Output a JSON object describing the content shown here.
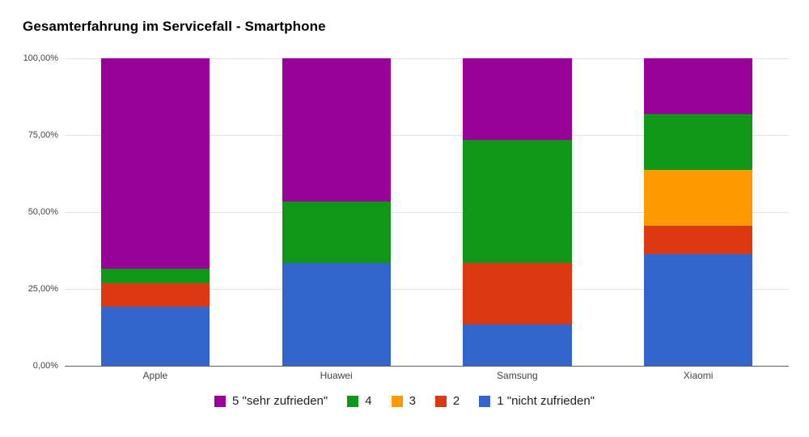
{
  "title": "Gesamterfahrung im Servicefall - Smartphone",
  "chart_data": {
    "type": "bar",
    "variant": "stacked-100-percent",
    "title": "Gesamterfahrung im Servicefall - Smartphone",
    "categories": [
      "Apple",
      "Huawei",
      "Samsung",
      "Xiaomi"
    ],
    "series": [
      {
        "name": "5 \"sehr zufrieden\"",
        "color": "#990099",
        "values": [
          68.5,
          46.7,
          26.7,
          18.2
        ]
      },
      {
        "name": "4",
        "color": "#109618",
        "values": [
          4.6,
          20.0,
          40.0,
          18.2
        ]
      },
      {
        "name": "3",
        "color": "#FF9900",
        "values": [
          0,
          0,
          0,
          18.2
        ]
      },
      {
        "name": "2",
        "color": "#DC3912",
        "values": [
          7.7,
          0,
          20.0,
          9.1
        ]
      },
      {
        "name": "1 \"nicht zufrieden\"",
        "color": "#3366CC",
        "values": [
          19.2,
          33.3,
          13.3,
          36.4
        ]
      }
    ],
    "xlabel": "",
    "ylabel": "",
    "ylim": [
      0,
      100
    ],
    "y_ticks": [
      "100,00%",
      "75,00%",
      "50,00%",
      "25,00%",
      "0,00%"
    ],
    "grid": true,
    "legend_position": "bottom"
  }
}
